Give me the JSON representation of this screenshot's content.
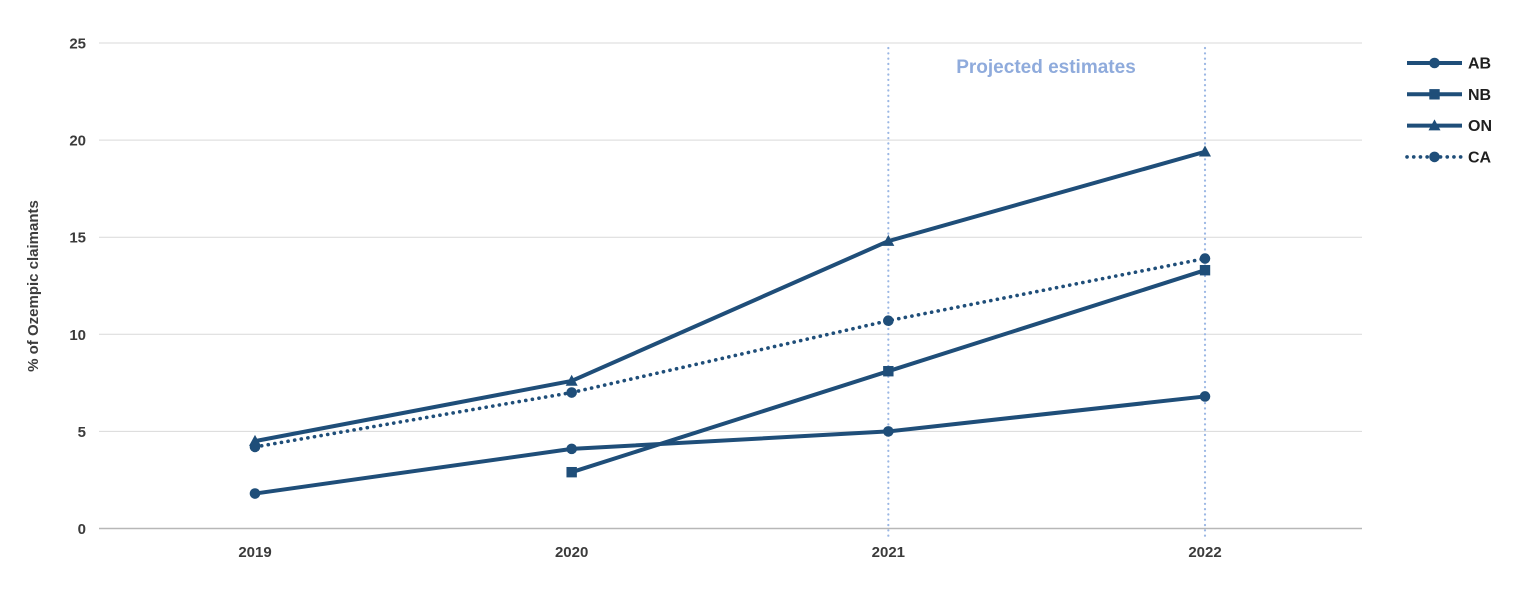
{
  "chart_data": {
    "type": "line",
    "title": "",
    "xlabel": "",
    "ylabel": "% of Ozempic claimants",
    "categories": [
      "2019",
      "2020",
      "2021",
      "2022"
    ],
    "series": [
      {
        "name": "AB",
        "marker": "circle",
        "dash": "solid",
        "values": [
          1.8,
          4.1,
          5.0,
          6.8
        ]
      },
      {
        "name": "NB",
        "marker": "square",
        "dash": "solid",
        "values": [
          null,
          2.9,
          8.1,
          13.3
        ]
      },
      {
        "name": "ON",
        "marker": "triangle",
        "dash": "solid",
        "values": [
          4.5,
          7.6,
          14.8,
          19.4
        ]
      },
      {
        "name": "CA",
        "marker": "circle",
        "dash": "dotted",
        "values": [
          4.2,
          7.0,
          10.7,
          13.9
        ]
      }
    ],
    "ylim": [
      0,
      25
    ],
    "yticks": [
      0,
      5,
      10,
      15,
      20,
      25
    ],
    "grid": true,
    "legend_position": "right",
    "annotation": {
      "label": "Projected estimates",
      "from_category": "2021",
      "to_category": "2022"
    },
    "colors": {
      "series": "#1f4e79",
      "projection_text": "#8fabdc",
      "projection_line": "#9bb7e4",
      "gridline": "#d9d9d9",
      "axis_line": "#b7b7b7",
      "tick_label": "#3b3b3b"
    }
  }
}
